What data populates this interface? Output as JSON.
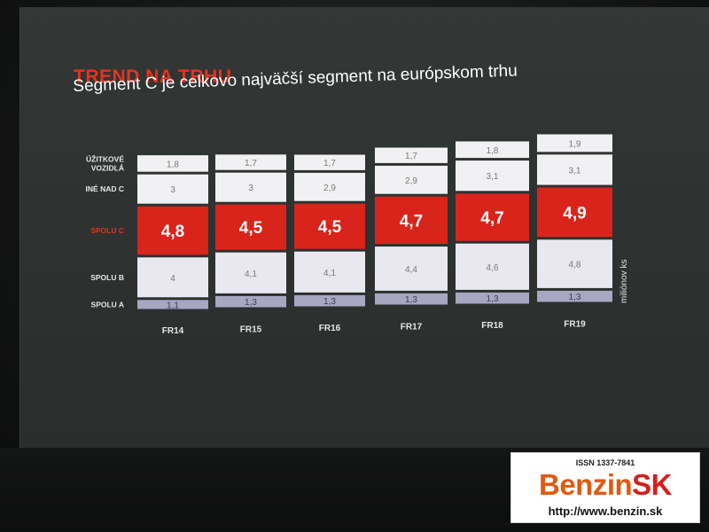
{
  "slide": {
    "title": "TREND NA TRHU",
    "subtitle": "Segment C je celkovo najväčší segment na európskom trhu"
  },
  "chart_data": {
    "type": "bar",
    "stacked": true,
    "categories": [
      "FR14",
      "FR15",
      "FR16",
      "FR17",
      "FR18",
      "FR19"
    ],
    "unit_label": "miliónov ks",
    "series": [
      {
        "name": "SPOLU A",
        "values": [
          1.1,
          1.3,
          1.3,
          1.3,
          1.3,
          1.3
        ],
        "labels": [
          "1,1",
          "1,3",
          "1,3",
          "1,3",
          "1,3",
          "1,3"
        ]
      },
      {
        "name": "SPOLU B",
        "values": [
          4,
          4.1,
          4.1,
          4.4,
          4.6,
          4.8
        ],
        "labels": [
          "4",
          "4,1",
          "4,1",
          "4,4",
          "4,6",
          "4,8"
        ]
      },
      {
        "name": "SPOLU C",
        "values": [
          4.8,
          4.5,
          4.5,
          4.7,
          4.7,
          4.9
        ],
        "labels": [
          "4,8",
          "4,5",
          "4,5",
          "4,7",
          "4,7",
          "4,9"
        ]
      },
      {
        "name": "INÉ NAD C",
        "values": [
          3,
          3,
          2.9,
          2.9,
          3.1,
          3.1
        ],
        "labels": [
          "3",
          "3",
          "2,9",
          "2,9",
          "3,1",
          "3,1"
        ]
      },
      {
        "name": "ÚŽITKOVÉ VOZIDLÁ",
        "values": [
          1.8,
          1.7,
          1.7,
          1.7,
          1.8,
          1.9
        ],
        "labels": [
          "1,8",
          "1,7",
          "1,7",
          "1,7",
          "1,8",
          "1,9"
        ]
      }
    ],
    "colors": {
      "SPOLU A": "#a9a6c2",
      "SPOLU B": "#e9e8f0",
      "SPOLU C": "#d9241b",
      "INÉ NAD C": "#f1f1f3",
      "ÚŽITKOVÉ VOZIDLÁ": "#f1f1f3",
      "highlight_label": "#e8321f"
    },
    "legend": "left"
  },
  "watermark": {
    "issn": "ISSN 1337-7841",
    "logo_part1": "Benzin",
    "logo_part2": "SK",
    "url": "http://www.benzin.sk"
  }
}
